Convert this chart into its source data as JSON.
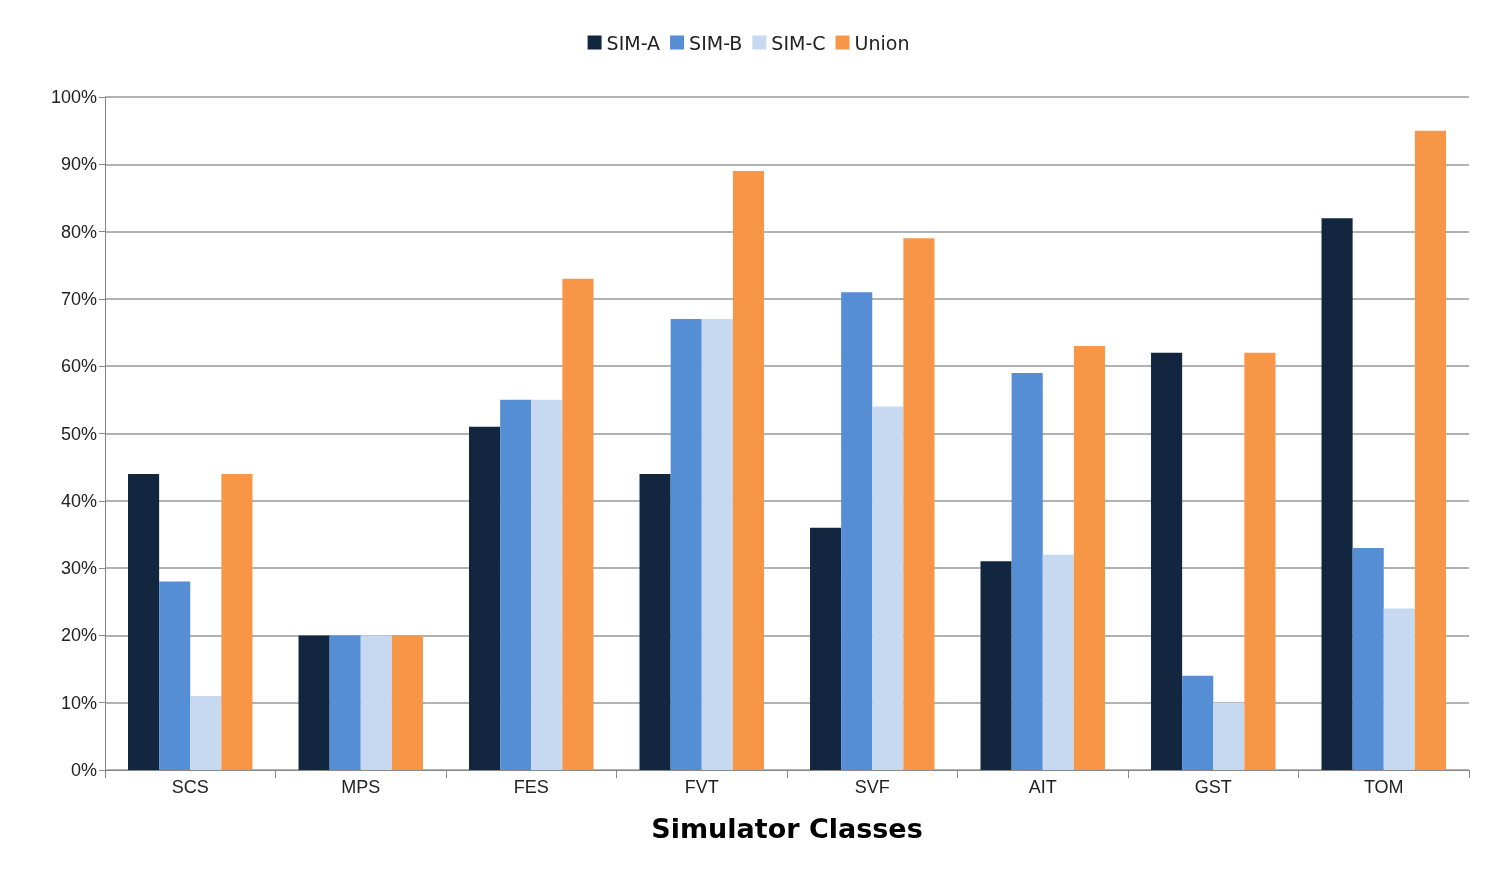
{
  "chart_data": {
    "type": "bar",
    "xlabel": "Simulator Classes",
    "categories": [
      "SCS",
      "MPS",
      "FES",
      "FVT",
      "SVF",
      "AIT",
      "GST",
      "TOM"
    ],
    "series": [
      {
        "name": "SIM-A",
        "color": "#12263f",
        "values": [
          44,
          20,
          51,
          44,
          36,
          31,
          62,
          82
        ]
      },
      {
        "name": "SIM-B",
        "color": "#558ed5",
        "values": [
          28,
          20,
          55,
          67,
          71,
          59,
          14,
          33
        ]
      },
      {
        "name": "SIM-C",
        "color": "#c6d9f1",
        "values": [
          11,
          20,
          55,
          67,
          54,
          32,
          10,
          24
        ]
      },
      {
        "name": "Union",
        "color": "#f79646",
        "values": [
          44,
          20,
          73,
          89,
          79,
          63,
          62,
          95
        ]
      }
    ],
    "ylim": [
      0,
      100
    ],
    "yticks": [
      {
        "value": 0,
        "label": "0%"
      },
      {
        "value": 10,
        "label": "10%"
      },
      {
        "value": 20,
        "label": "20%"
      },
      {
        "value": 30,
        "label": "30%"
      },
      {
        "value": 40,
        "label": "40%"
      },
      {
        "value": 50,
        "label": "50%"
      },
      {
        "value": 60,
        "label": "60%"
      },
      {
        "value": 70,
        "label": "70%"
      },
      {
        "value": 80,
        "label": "80%"
      },
      {
        "value": 90,
        "label": "90%"
      },
      {
        "value": 100,
        "label": "100%"
      }
    ],
    "grid": "y",
    "legend": "top"
  }
}
